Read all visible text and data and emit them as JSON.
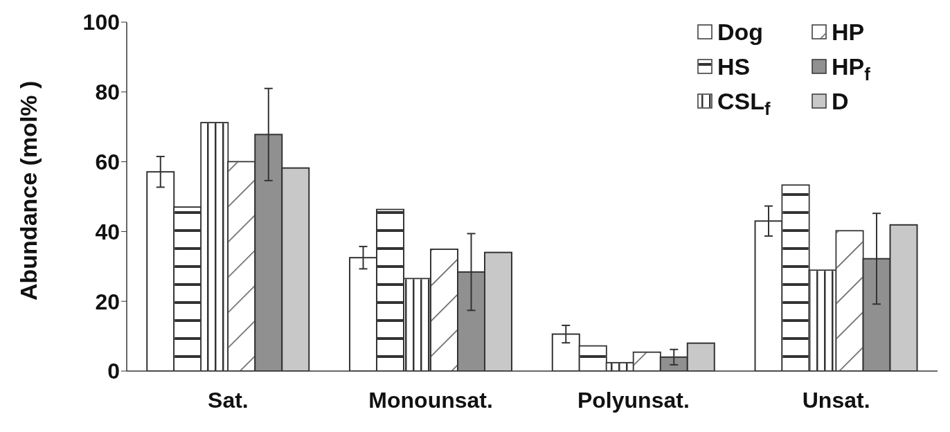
{
  "chart_data": {
    "type": "bar",
    "ylabel": "Abundance (mol% )",
    "categories": [
      "Sat.",
      "Monounsat.",
      "Polyunsat.",
      "Unsat."
    ],
    "series": [
      {
        "name": "Dog",
        "color": "#ffffff",
        "values": [
          57.1,
          32.5,
          10.6,
          43.0
        ],
        "errors": [
          4.4,
          3.2,
          2.5,
          4.3
        ]
      },
      {
        "name": "HS",
        "color": "#ffffff",
        "values": [
          47.0,
          46.3,
          7.2,
          53.3
        ]
      },
      {
        "name": "CSL$_{f}$",
        "color": "#ffffff",
        "values": [
          71.2,
          26.5,
          2.4,
          28.9
        ]
      },
      {
        "name": "HP",
        "color": "#ffffff",
        "values": [
          60.0,
          34.9,
          5.4,
          40.2
        ]
      },
      {
        "name": "HP$_{f}$",
        "color": "#909090",
        "values": [
          67.8,
          28.4,
          4.0,
          32.2
        ],
        "errors": [
          13.2,
          11,
          2.2,
          13
        ]
      },
      {
        "name": "D",
        "color": "#c8c8c8",
        "values": [
          58.2,
          34.0,
          8.0,
          41.9
        ]
      }
    ],
    "ylim": [
      0,
      100
    ],
    "yticks": [
      0,
      20,
      40,
      60,
      80,
      100
    ],
    "grid": false,
    "legend": "top right"
  }
}
